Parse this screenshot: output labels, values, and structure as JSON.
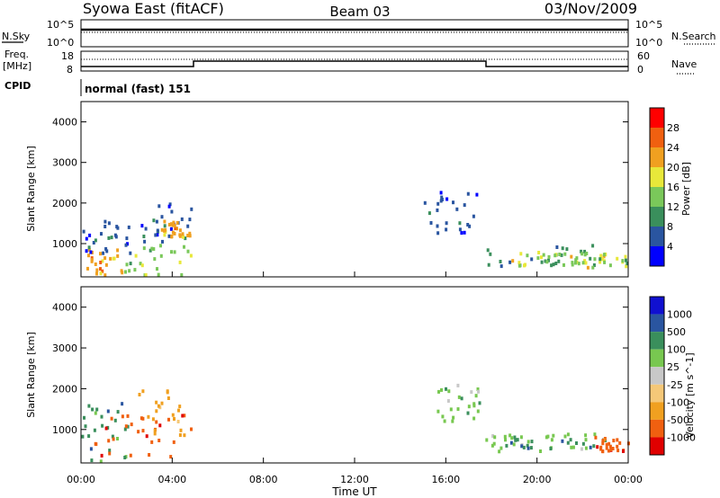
{
  "header": {
    "station": "Syowa East (fitACF)",
    "beam": "Beam 03",
    "date": "03/Nov/2009"
  },
  "noise_panel": {
    "left_label": "N.Sky",
    "right_label": "N.Search",
    "tick_top": "10^5",
    "tick_bottom": "10^0"
  },
  "freq_panel": {
    "left_label_1": "Freq.",
    "left_label_2": "[MHz]",
    "right_label": "Nave",
    "freq_ticks": [
      "18",
      "8"
    ],
    "nave_ticks": [
      "60",
      "0"
    ]
  },
  "cpid": {
    "label": "CPID",
    "text": "normal (fast) 151"
  },
  "colors": {
    "power": [
      "#0000ff",
      "#2a55a0",
      "#3a8f5c",
      "#7ac85a",
      "#e8e83a",
      "#f0a020",
      "#f06010",
      "#ff0000"
    ],
    "velocity": [
      "#e00000",
      "#f06010",
      "#f0a020",
      "#f5c878",
      "#c8c8c8",
      "#78c850",
      "#3a8f5c",
      "#2a55a0",
      "#1010d0"
    ]
  },
  "chart_data": [
    {
      "type": "heatmap",
      "xlabel": "Time UT",
      "ylabel": "Slant Range [km]",
      "xlim": [
        0,
        24
      ],
      "ylim": [
        180,
        4500
      ],
      "yticks": [
        "1000",
        "2000",
        "3000",
        "4000"
      ],
      "xticks": [
        "00:00",
        "04:00",
        "08:00",
        "12:00",
        "16:00",
        "20:00",
        "00:00"
      ],
      "colorbar_label": "Power [dB]",
      "colorbar_ticks": [
        "4",
        "8",
        "12",
        "16",
        "20",
        "24",
        "28"
      ],
      "regions": [
        {
          "t0": 0.0,
          "t1": 1.8,
          "r0": 250,
          "r1": 900,
          "level": 5
        },
        {
          "t0": 0.0,
          "t1": 2.2,
          "r0": 800,
          "r1": 1700,
          "level": 1
        },
        {
          "t0": 1.8,
          "t1": 4.8,
          "r0": 250,
          "r1": 1000,
          "level": 3
        },
        {
          "t0": 2.5,
          "t1": 4.8,
          "r0": 1000,
          "r1": 2050,
          "level": 1
        },
        {
          "t0": 3.5,
          "t1": 4.8,
          "r0": 1200,
          "r1": 1600,
          "level": 5
        },
        {
          "t0": 15.0,
          "t1": 17.5,
          "r0": 1300,
          "r1": 2300,
          "level": 1
        },
        {
          "t0": 17.5,
          "t1": 22.5,
          "r0": 450,
          "r1": 1000,
          "level": 2
        },
        {
          "t0": 18.5,
          "t1": 24.0,
          "r0": 450,
          "r1": 850,
          "level": 4
        },
        {
          "t0": 20.0,
          "t1": 24.0,
          "r0": 500,
          "r1": 800,
          "level": 3
        }
      ]
    },
    {
      "type": "heatmap",
      "xlabel": "Time UT",
      "ylabel": "Slant Range [km]",
      "xlim": [
        0,
        24
      ],
      "ylim": [
        180,
        4500
      ],
      "yticks": [
        "1000",
        "2000",
        "3000",
        "4000"
      ],
      "xticks": [
        "00:00",
        "04:00",
        "08:00",
        "12:00",
        "16:00",
        "20:00",
        "00:00"
      ],
      "colorbar_label": "Velocity [m s^-1]",
      "colorbar_ticks": [
        "1000",
        "500",
        "100",
        "25",
        "-25",
        "-100",
        "-500",
        "-1000"
      ],
      "regions": [
        {
          "t0": 0.0,
          "t1": 2.0,
          "r0": 250,
          "r1": 1700,
          "level": 6
        },
        {
          "t0": 0.5,
          "t1": 4.8,
          "r0": 300,
          "r1": 1400,
          "level": 1
        },
        {
          "t0": 2.5,
          "t1": 4.8,
          "r0": 900,
          "r1": 2000,
          "level": 2
        },
        {
          "t0": 15.5,
          "t1": 17.5,
          "r0": 1200,
          "r1": 2200,
          "level": 5
        },
        {
          "t0": 17.5,
          "t1": 22.5,
          "r0": 500,
          "r1": 950,
          "level": 5
        },
        {
          "t0": 18.0,
          "t1": 23.0,
          "r0": 550,
          "r1": 800,
          "level": 6
        },
        {
          "t0": 22.5,
          "t1": 24.0,
          "r0": 500,
          "r1": 850,
          "level": 1
        }
      ]
    }
  ]
}
